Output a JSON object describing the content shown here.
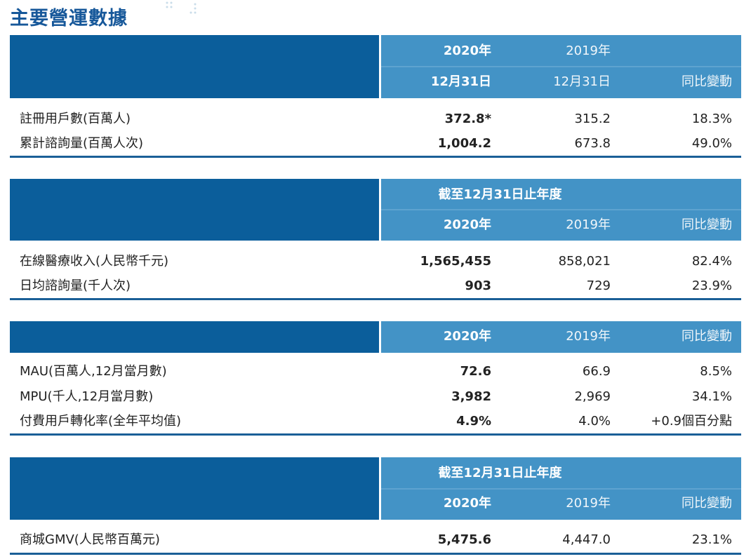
{
  "header": {
    "title": "主要營運數據"
  },
  "tables": [
    {
      "header_rows": [
        [
          "2020年",
          "2019年"
        ],
        [
          "12月31日",
          "12月31日",
          "同比變動"
        ]
      ],
      "rows": [
        [
          "註冊用戶數(百萬人)",
          "372.8*",
          "315.2",
          "18.3%"
        ],
        [
          "累計諮詢量(百萬人次)",
          "1,004.2",
          "673.8",
          "49.0%"
        ]
      ]
    },
    {
      "header_rows": [
        [
          "截至12月31日止年度"
        ],
        [
          "2020年",
          "2019年",
          "同比變動"
        ]
      ],
      "rows": [
        [
          "在線醫療收入(人民幣千元)",
          "1,565,455",
          "858,021",
          "82.4%"
        ],
        [
          "日均諮詢量(千人次)",
          "903",
          "729",
          "23.9%"
        ]
      ]
    },
    {
      "header_rows": [
        [
          "2020年",
          "2019年",
          "同比變動"
        ]
      ],
      "rows": [
        [
          "MAU(百萬人,12月當月數)",
          "72.6",
          "66.9",
          "8.5%"
        ],
        [
          "MPU(千人,12月當月數)",
          "3,982",
          "2,969",
          "34.1%"
        ],
        [
          "付費用戶轉化率(全年平均值)",
          "4.9%",
          "4.0%",
          "+0.9個百分點"
        ]
      ]
    },
    {
      "header_rows": [
        [
          "截至12月31日止年度"
        ],
        [
          "2020年",
          "2019年",
          "同比變動"
        ]
      ],
      "rows": [
        [
          "商城GMV(人民幣百萬元)",
          "5,475.6",
          "4,447.0",
          "23.1%"
        ]
      ]
    }
  ]
}
